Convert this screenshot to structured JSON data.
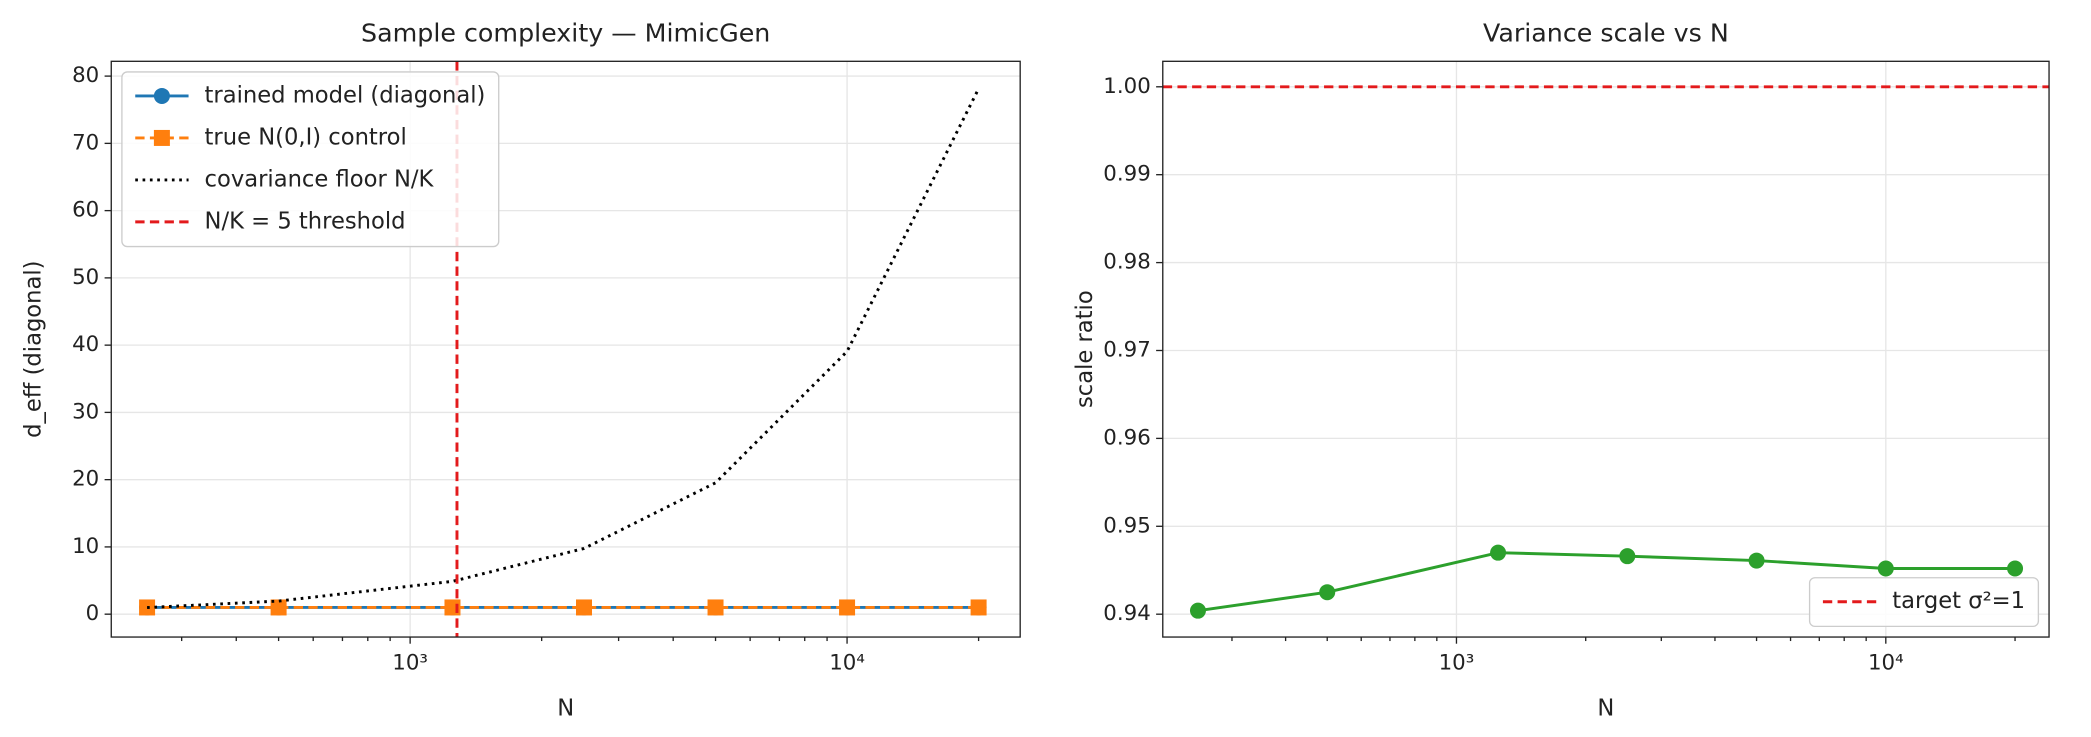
{
  "chart_data": [
    {
      "type": "line",
      "title": "Sample complexity — MimicGen",
      "xlabel": "N",
      "ylabel": "d_eff (diagonal)",
      "x": [
        250,
        500,
        1250,
        2500,
        5000,
        10000,
        20000
      ],
      "xscale": "log",
      "xlim": [
        207,
        24900
      ],
      "xticks": [
        {
          "value": 1000,
          "label": "10³"
        },
        {
          "value": 10000,
          "label": "10⁴"
        }
      ],
      "ylim": [
        -3.4,
        82.2
      ],
      "yticks": [
        0,
        10,
        20,
        30,
        40,
        50,
        60,
        70,
        80
      ],
      "grid": true,
      "legend": "upper left",
      "series": [
        {
          "name": "trained model (diagonal)",
          "color": "#1f77b4",
          "marker": "circle",
          "linestyle": "solid",
          "values": [
            1.0,
            1.0,
            1.0,
            1.0,
            1.0,
            1.0,
            1.0
          ]
        },
        {
          "name": "true N(0,I) control",
          "color": "#ff7f0e",
          "marker": "square",
          "linestyle": "dashed",
          "values": [
            1.0,
            1.0,
            1.0,
            1.0,
            1.0,
            1.0,
            1.0
          ]
        },
        {
          "name": "covariance floor N/K",
          "color": "#000000",
          "marker": "none",
          "linestyle": "dotted",
          "values": [
            0.98,
            1.95,
            4.88,
            9.77,
            19.53,
            39.06,
            78.13
          ]
        }
      ],
      "vlines": [
        {
          "name": "N/K = 5 threshold",
          "x": 1280,
          "color": "#e31a1c",
          "linestyle": "dashed"
        }
      ]
    },
    {
      "type": "line",
      "title": "Variance scale vs N",
      "xlabel": "N",
      "ylabel": "scale ratio",
      "x": [
        250,
        500,
        1250,
        2500,
        5000,
        10000,
        20000
      ],
      "xscale": "log",
      "xlim": [
        207,
        24000
      ],
      "xticks": [
        {
          "value": 1000,
          "label": "10³"
        },
        {
          "value": 10000,
          "label": "10⁴"
        }
      ],
      "ylim": [
        0.9374,
        1.0029
      ],
      "yticks": [
        0.94,
        0.95,
        0.96,
        0.97,
        0.98,
        0.99,
        {
          "value": 1,
          "label": "1.00"
        }
      ],
      "grid": true,
      "legend": "lower right",
      "series": [
        {
          "name": null,
          "color": "#2ca02c",
          "marker": "circle",
          "linestyle": "solid",
          "values": [
            0.9404,
            0.9425,
            0.947,
            0.9466,
            0.9461,
            0.9452,
            0.9452
          ]
        }
      ],
      "hlines": [
        {
          "name": "target σ²=1",
          "y": 1,
          "color": "#e31a1c",
          "linestyle": "dashed"
        }
      ]
    }
  ]
}
